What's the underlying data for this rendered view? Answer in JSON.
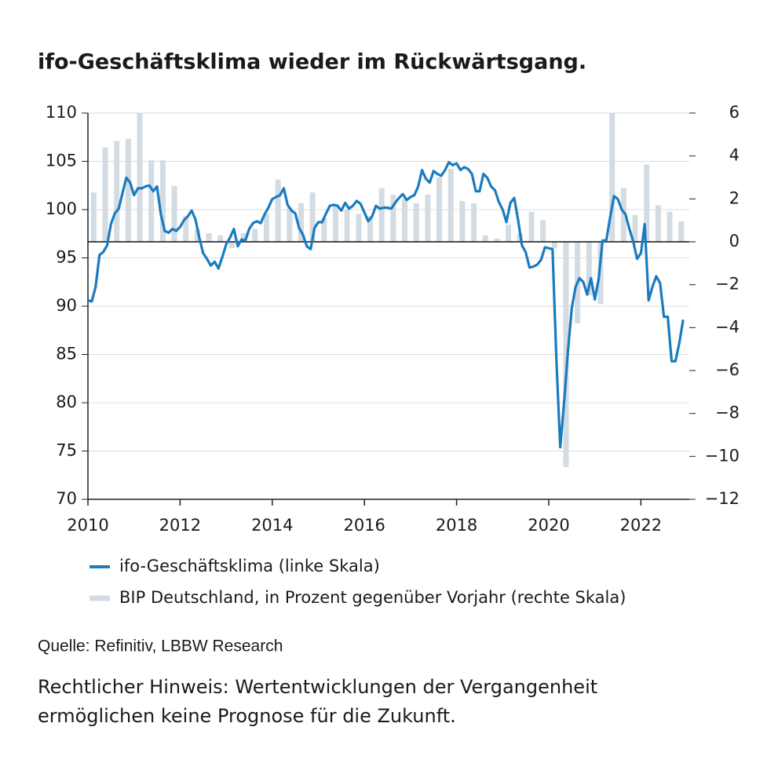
{
  "chart_data": {
    "type": "combo",
    "title": "ifo-Geschäftsklima wieder im Rückwärtsgang.",
    "source": "Quelle: Refinitiv, LBBW Research",
    "note": [
      "Rechtlicher Hinweis: Wertentwicklungen der Vergangenheit",
      "ermöglichen keine Prognose für die Zukunft."
    ],
    "xlim": [
      2010,
      2023.05
    ],
    "xticks": [
      2010,
      2012,
      2014,
      2016,
      2018,
      2020,
      2022
    ],
    "ylim": [
      70,
      110
    ],
    "yticks": [
      70,
      75,
      80,
      85,
      90,
      95,
      100,
      105,
      110
    ],
    "y2lim": [
      -12,
      6
    ],
    "y2ticks": [
      {
        "value": -12,
        "label": "−12"
      },
      {
        "value": -10,
        "label": "−10"
      },
      {
        "value": -8,
        "label": "−8"
      },
      {
        "value": -6,
        "label": "−6"
      },
      {
        "value": -4,
        "label": "−4"
      },
      {
        "value": -2,
        "label": "−2"
      },
      0,
      2,
      4,
      6
    ],
    "grid": true,
    "series": [
      {
        "name": "BIP Deutschland, in Prozent gegenüber Vorjahr (rechte Skala)",
        "type": "bar",
        "axis": "y2",
        "color": "#d3dbe3",
        "x": [
          2010.125,
          2010.375,
          2010.625,
          2010.875,
          2011.125,
          2011.375,
          2011.625,
          2011.875,
          2012.125,
          2012.375,
          2012.625,
          2012.875,
          2013.125,
          2013.375,
          2013.625,
          2013.875,
          2014.125,
          2014.375,
          2014.625,
          2014.875,
          2015.125,
          2015.375,
          2015.625,
          2015.875,
          2016.125,
          2016.375,
          2016.625,
          2016.875,
          2017.125,
          2017.375,
          2017.625,
          2017.875,
          2018.125,
          2018.375,
          2018.625,
          2018.875,
          2019.125,
          2019.375,
          2019.625,
          2019.875,
          2020.125,
          2020.375,
          2020.625,
          2020.875,
          2021.125,
          2021.375,
          2021.625,
          2021.875,
          2022.125,
          2022.375,
          2022.625,
          2022.875
        ],
        "values": [
          2.3,
          4.4,
          4.7,
          4.8,
          6.0,
          3.8,
          3.8,
          2.6,
          1.2,
          0.6,
          0.4,
          0.3,
          -0.3,
          0.4,
          0.6,
          1.3,
          2.9,
          1.6,
          1.8,
          2.3,
          1.1,
          1.7,
          1.5,
          1.3,
          1.2,
          2.5,
          2.2,
          2.0,
          1.8,
          2.2,
          3.0,
          3.4,
          1.9,
          1.8,
          0.3,
          0.15,
          0.8,
          0.4,
          1.4,
          1.0,
          -0.3,
          -10.5,
          -3.8,
          -2.5,
          -2.9,
          6.0,
          2.5,
          1.25,
          3.6,
          1.7,
          1.4,
          0.95
        ]
      },
      {
        "name": "ifo-Geschäftsklima (linke Skala)",
        "type": "line",
        "color": "#1a7bbf",
        "x": [
          2010.0,
          2010.083,
          2010.167,
          2010.25,
          2010.333,
          2010.417,
          2010.5,
          2010.583,
          2010.667,
          2010.75,
          2010.833,
          2010.917,
          2011.0,
          2011.083,
          2011.167,
          2011.25,
          2011.333,
          2011.417,
          2011.5,
          2011.583,
          2011.667,
          2011.75,
          2011.833,
          2011.917,
          2012.0,
          2012.083,
          2012.167,
          2012.25,
          2012.333,
          2012.417,
          2012.5,
          2012.583,
          2012.667,
          2012.75,
          2012.833,
          2012.917,
          2013.0,
          2013.083,
          2013.167,
          2013.25,
          2013.333,
          2013.417,
          2013.5,
          2013.583,
          2013.667,
          2013.75,
          2013.833,
          2013.917,
          2014.0,
          2014.083,
          2014.167,
          2014.25,
          2014.333,
          2014.417,
          2014.5,
          2014.583,
          2014.667,
          2014.75,
          2014.833,
          2014.917,
          2015.0,
          2015.083,
          2015.167,
          2015.25,
          2015.333,
          2015.417,
          2015.5,
          2015.583,
          2015.667,
          2015.75,
          2015.833,
          2015.917,
          2016.0,
          2016.083,
          2016.167,
          2016.25,
          2016.333,
          2016.417,
          2016.5,
          2016.583,
          2016.667,
          2016.75,
          2016.833,
          2016.917,
          2017.0,
          2017.083,
          2017.167,
          2017.25,
          2017.333,
          2017.417,
          2017.5,
          2017.583,
          2017.667,
          2017.75,
          2017.833,
          2017.917,
          2018.0,
          2018.083,
          2018.167,
          2018.25,
          2018.333,
          2018.417,
          2018.5,
          2018.583,
          2018.667,
          2018.75,
          2018.833,
          2018.917,
          2019.0,
          2019.083,
          2019.167,
          2019.25,
          2019.333,
          2019.417,
          2019.5,
          2019.583,
          2019.667,
          2019.75,
          2019.833,
          2019.917,
          2020.0,
          2020.083,
          2020.167,
          2020.25,
          2020.333,
          2020.417,
          2020.5,
          2020.583,
          2020.667,
          2020.75,
          2020.833,
          2020.917,
          2021.0,
          2021.083,
          2021.167,
          2021.25,
          2021.333,
          2021.417,
          2021.5,
          2021.583,
          2021.667,
          2021.75,
          2021.833,
          2021.917,
          2022.0,
          2022.083,
          2022.167,
          2022.25,
          2022.333,
          2022.417,
          2022.5,
          2022.583,
          2022.667,
          2022.75,
          2022.833,
          2022.917
        ],
        "values": [
          90.6,
          90.5,
          92,
          95.3,
          95.6,
          96.3,
          98.5,
          99.6,
          100.1,
          101.7,
          103.3,
          102.8,
          101.5,
          102.2,
          102.2,
          102.4,
          102.5,
          101.9,
          102.4,
          99.5,
          97.8,
          97.6,
          98,
          97.8,
          98.2,
          98.9,
          99.3,
          99.9,
          99,
          97.1,
          95.5,
          94.9,
          94.2,
          94.6,
          93.9,
          95.1,
          96.4,
          97.1,
          98,
          96.2,
          96.9,
          96.8,
          98,
          98.6,
          98.8,
          98.6,
          99.5,
          100.2,
          101.1,
          101.3,
          101.5,
          102.2,
          100.5,
          99.9,
          99.6,
          98.1,
          97.4,
          96.2,
          95.9,
          98.1,
          98.7,
          98.7,
          99.6,
          100.4,
          100.5,
          100.4,
          99.9,
          100.7,
          100.1,
          100.4,
          100.9,
          100.6,
          99.7,
          98.8,
          99.3,
          100.4,
          100.1,
          100.2,
          100.2,
          100.1,
          100.7,
          101.2,
          101.6,
          101,
          101.3,
          101.5,
          102.4,
          104.1,
          103.2,
          102.8,
          104,
          103.7,
          103.5,
          104.1,
          104.9,
          104.6,
          104.8,
          104.1,
          104.4,
          104.2,
          103.7,
          101.9,
          101.9,
          103.7,
          103.3,
          102.4,
          102,
          100.8,
          100,
          98.7,
          100.7,
          101.2,
          99,
          96.3,
          95.6,
          94,
          94.1,
          94.3,
          94.8,
          96.1,
          96,
          95.9,
          84.3,
          75.4,
          80,
          85.3,
          89.8,
          92,
          92.9,
          92.5,
          91.2,
          92.9,
          90.7,
          92.8,
          96.8,
          96.8,
          99.2,
          101.4,
          101.1,
          100,
          99.5,
          98,
          96.7,
          94.9,
          95.5,
          98.5,
          90.6,
          92,
          93.1,
          92.4,
          88.9,
          88.9,
          84.3,
          84.3,
          86.2,
          88.6
        ]
      }
    ]
  }
}
